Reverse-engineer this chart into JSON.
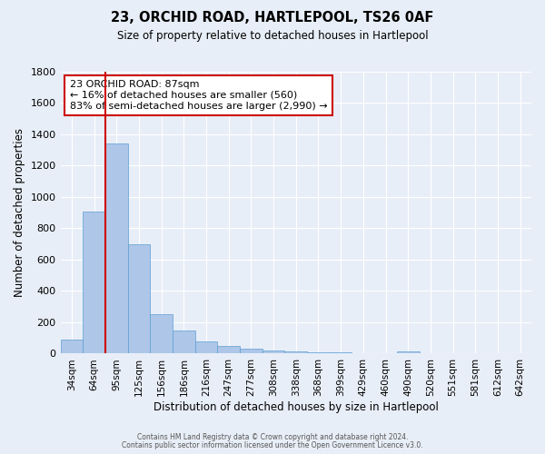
{
  "title": "23, ORCHID ROAD, HARTLEPOOL, TS26 0AF",
  "subtitle": "Size of property relative to detached houses in Hartlepool",
  "xlabel": "Distribution of detached houses by size in Hartlepool",
  "ylabel": "Number of detached properties",
  "bar_labels": [
    "34sqm",
    "64sqm",
    "95sqm",
    "125sqm",
    "156sqm",
    "186sqm",
    "216sqm",
    "247sqm",
    "277sqm",
    "308sqm",
    "338sqm",
    "368sqm",
    "399sqm",
    "429sqm",
    "460sqm",
    "490sqm",
    "520sqm",
    "551sqm",
    "581sqm",
    "612sqm",
    "642sqm"
  ],
  "bar_values": [
    90,
    905,
    1340,
    700,
    250,
    145,
    80,
    50,
    30,
    22,
    12,
    10,
    10,
    0,
    0,
    12,
    0,
    0,
    0,
    0,
    0
  ],
  "bar_color": "#aec6e8",
  "bar_edge_color": "#5a9fd4",
  "bar_width": 1.0,
  "ylim": [
    0,
    1800
  ],
  "yticks": [
    0,
    200,
    400,
    600,
    800,
    1000,
    1200,
    1400,
    1600,
    1800
  ],
  "vline_color": "#cc0000",
  "annotation_text": "23 ORCHID ROAD: 87sqm\n← 16% of detached houses are smaller (560)\n83% of semi-detached houses are larger (2,990) →",
  "annotation_box_color": "#ffffff",
  "annotation_box_edgecolor": "#cc0000",
  "footer_line1": "Contains HM Land Registry data © Crown copyright and database right 2024.",
  "footer_line2": "Contains public sector information licensed under the Open Government Licence v3.0.",
  "bg_color": "#e8eef7",
  "grid_color": "#ffffff"
}
